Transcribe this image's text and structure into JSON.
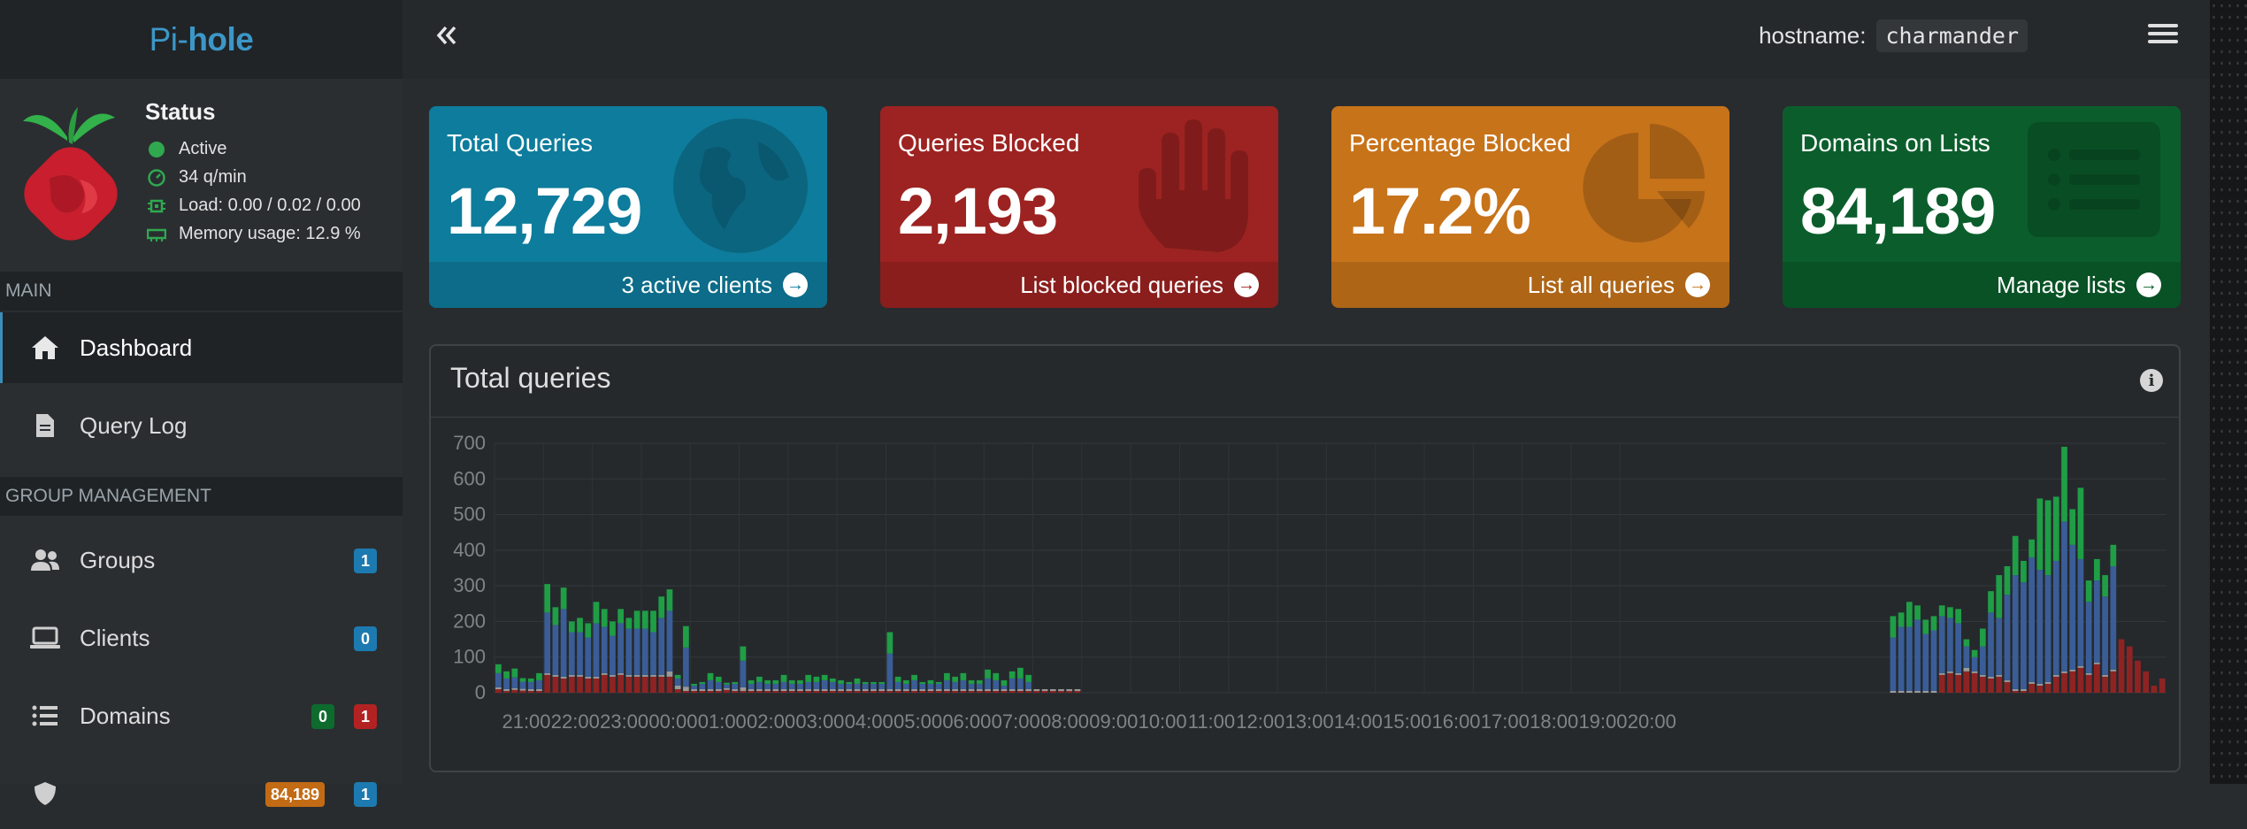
{
  "brand": {
    "pi": "Pi-",
    "hole": "hole"
  },
  "topbar": {
    "hostname_label": "hostname:",
    "hostname_value": "charmander"
  },
  "status": {
    "title": "Status",
    "active": "Active",
    "rate": "34 q/min",
    "load": "Load: 0.00 / 0.02 / 0.00",
    "memory": "Memory usage: 12.9 %"
  },
  "sidebar": {
    "main_header": "MAIN",
    "group_header": "GROUP MANAGEMENT",
    "items": [
      {
        "label": "Dashboard",
        "icon": "home-icon"
      },
      {
        "label": "Query Log",
        "icon": "file-icon"
      },
      {
        "label": "Groups",
        "icon": "users-icon",
        "badges": [
          "1"
        ]
      },
      {
        "label": "Clients",
        "icon": "laptop-icon",
        "badges": [
          "0"
        ]
      },
      {
        "label": "Domains",
        "icon": "list-icon",
        "badges": [
          "0",
          "1"
        ]
      },
      {
        "label": "",
        "icon": "shield-icon",
        "badges": [
          "84,189",
          "1"
        ]
      }
    ]
  },
  "boxes": [
    {
      "label": "Total Queries",
      "value": "12,729",
      "footer": "3 active clients",
      "color": "#0e7c9c",
      "icon": "globe-icon"
    },
    {
      "label": "Queries Blocked",
      "value": "2,193",
      "footer": "List blocked queries",
      "color": "#9c2321",
      "icon": "hand-icon"
    },
    {
      "label": "Percentage Blocked",
      "value": "17.2%",
      "footer": "List all queries",
      "color": "#c7731a",
      "icon": "pie-chart-icon"
    },
    {
      "label": "Domains on Lists",
      "value": "84,189",
      "footer": "Manage lists",
      "color": "#0b5e2c",
      "icon": "list-icon"
    }
  ],
  "chart_title": "Total queries",
  "chart_data": {
    "type": "bar",
    "stacked": true,
    "ylim": [
      0,
      700
    ],
    "yticks": [
      0,
      100,
      200,
      300,
      400,
      500,
      600,
      700
    ],
    "xtick_labels": [
      "21:00",
      "22:00",
      "23:00",
      "00:00",
      "01:00",
      "02:00",
      "03:00",
      "04:00",
      "05:00",
      "06:00",
      "07:00",
      "08:00",
      "09:00",
      "10:00",
      "11:00",
      "12:00",
      "13:00",
      "14:00",
      "15:00",
      "16:00",
      "17:00",
      "18:00",
      "19:00",
      "20:00"
    ],
    "colors": {
      "blocked": "#8e2323",
      "cached": "#9a9a9a",
      "forwarded": "#3a5d97",
      "other": "#1f9e46"
    },
    "slots_per_hour": 6,
    "series": [
      {
        "key": "blocked",
        "values": [
          10,
          5,
          8,
          6,
          5,
          5,
          50,
          45,
          40,
          45,
          45,
          40,
          40,
          50,
          45,
          50,
          45,
          45,
          45,
          45,
          45,
          45,
          10,
          5,
          5,
          5,
          5,
          5,
          8,
          5,
          5,
          5,
          5,
          5,
          5,
          5,
          5,
          5,
          5,
          5,
          5,
          5,
          5,
          5,
          5,
          5,
          5,
          5,
          5,
          5,
          5,
          5,
          5,
          5,
          5,
          5,
          5,
          5,
          5,
          5,
          5,
          5,
          5,
          5,
          5,
          5,
          5,
          5,
          5,
          5,
          5,
          5,
          0,
          0,
          0,
          0,
          0,
          0,
          0,
          0,
          0,
          0,
          0,
          0,
          0,
          0,
          0,
          0,
          0,
          0,
          0,
          0,
          0,
          0,
          0,
          0,
          0,
          0,
          0,
          0,
          0,
          0,
          0,
          0,
          0,
          0,
          0,
          0,
          0,
          0,
          0,
          0,
          0,
          0,
          0,
          0,
          0,
          0,
          0,
          0,
          0,
          0,
          0,
          0,
          0,
          0,
          0,
          0,
          0,
          0,
          0,
          0,
          0,
          0,
          0,
          0,
          0,
          0,
          0,
          0,
          0,
          0,
          0,
          0,
          0,
          0,
          0,
          0,
          0,
          0,
          0,
          0,
          0,
          0,
          0,
          0,
          0,
          0,
          0,
          0,
          0,
          0,
          0,
          0,
          0,
          0,
          0,
          0,
          0,
          0,
          0,
          0,
          0,
          0,
          0,
          0,
          0,
          50,
          55,
          50,
          60,
          55,
          45,
          40,
          45,
          30,
          5,
          5,
          25,
          20,
          25,
          45,
          55,
          60,
          70,
          50,
          80,
          45,
          60,
          150,
          130,
          90,
          60,
          20,
          40
        ]
      },
      {
        "key": "cached",
        "values": [
          5,
          5,
          5,
          5,
          5,
          5,
          5,
          5,
          5,
          5,
          5,
          5,
          5,
          5,
          5,
          5,
          5,
          5,
          5,
          5,
          5,
          15,
          10,
          12,
          5,
          5,
          5,
          5,
          5,
          5,
          10,
          5,
          5,
          5,
          5,
          5,
          5,
          5,
          5,
          5,
          5,
          5,
          5,
          5,
          5,
          5,
          5,
          5,
          5,
          5,
          5,
          5,
          5,
          5,
          5,
          5,
          5,
          5,
          5,
          5,
          5,
          5,
          5,
          5,
          5,
          5,
          5,
          5,
          5,
          5,
          5,
          5,
          0,
          0,
          0,
          0,
          0,
          0,
          0,
          0,
          0,
          0,
          0,
          0,
          0,
          0,
          0,
          0,
          0,
          0,
          0,
          0,
          0,
          0,
          0,
          0,
          0,
          0,
          0,
          0,
          0,
          0,
          0,
          0,
          0,
          0,
          0,
          0,
          0,
          0,
          0,
          0,
          0,
          0,
          0,
          0,
          0,
          0,
          0,
          0,
          0,
          0,
          0,
          0,
          0,
          0,
          0,
          0,
          0,
          0,
          0,
          0,
          0,
          0,
          0,
          0,
          0,
          0,
          0,
          0,
          0,
          0,
          0,
          0,
          0,
          0,
          0,
          0,
          0,
          0,
          0,
          0,
          0,
          0,
          0,
          0,
          0,
          0,
          0,
          0,
          0,
          0,
          0,
          0,
          0,
          0,
          0,
          0,
          0,
          0,
          0,
          5,
          5,
          5,
          5,
          5,
          5,
          5,
          5,
          5,
          10,
          5,
          5,
          5,
          5,
          5,
          5,
          5,
          5,
          5,
          5,
          5,
          5,
          5,
          5,
          5,
          5,
          5,
          5
        ]
      },
      {
        "key": "forwarded",
        "values": [
          40,
          30,
          30,
          20,
          20,
          25,
          170,
          140,
          190,
          120,
          120,
          110,
          150,
          130,
          110,
          140,
          130,
          130,
          130,
          120,
          160,
          170,
          20,
          110,
          10,
          15,
          25,
          20,
          10,
          15,
          75,
          15,
          20,
          15,
          15,
          20,
          15,
          15,
          20,
          20,
          25,
          20,
          15,
          15,
          15,
          15,
          15,
          15,
          100,
          20,
          15,
          25,
          15,
          15,
          15,
          25,
          20,
          25,
          15,
          15,
          30,
          25,
          10,
          30,
          30,
          20,
          0,
          0,
          0,
          0,
          0,
          0,
          0,
          0,
          0,
          0,
          0,
          0,
          0,
          0,
          0,
          0,
          0,
          0,
          0,
          0,
          0,
          0,
          0,
          0,
          0,
          0,
          0,
          0,
          0,
          0,
          0,
          0,
          0,
          0,
          0,
          0,
          0,
          0,
          0,
          0,
          0,
          0,
          0,
          0,
          0,
          0,
          0,
          0,
          0,
          0,
          0,
          0,
          0,
          0,
          0,
          0,
          0,
          0,
          0,
          0,
          0,
          0,
          0,
          0,
          0,
          0,
          0,
          0,
          0,
          0,
          0,
          0,
          0,
          0,
          0,
          0,
          0,
          0,
          0,
          0,
          0,
          0,
          0,
          0,
          0,
          0,
          0,
          0,
          0,
          0,
          0,
          0,
          0,
          0,
          0,
          0,
          0,
          0,
          0,
          0,
          0,
          0,
          0,
          0,
          0,
          150,
          180,
          180,
          200,
          160,
          170,
          160,
          150,
          140,
          60,
          40,
          80,
          180,
          160,
          240,
          320,
          300,
          350,
          320,
          300,
          320,
          420,
          350,
          300,
          200,
          230,
          220,
          290
        ]
      },
      {
        "key": "other",
        "values": [
          25,
          20,
          25,
          10,
          10,
          20,
          80,
          50,
          60,
          30,
          40,
          40,
          60,
          50,
          40,
          40,
          30,
          50,
          50,
          60,
          60,
          60,
          10,
          60,
          5,
          5,
          20,
          15,
          5,
          5,
          40,
          10,
          15,
          10,
          10,
          20,
          10,
          10,
          20,
          15,
          15,
          10,
          10,
          5,
          15,
          5,
          5,
          5,
          60,
          15,
          10,
          15,
          5,
          10,
          5,
          20,
          15,
          20,
          10,
          10,
          25,
          20,
          15,
          20,
          30,
          20,
          0,
          0,
          0,
          0,
          0,
          0,
          0,
          0,
          0,
          0,
          0,
          0,
          0,
          0,
          0,
          0,
          0,
          0,
          0,
          0,
          0,
          0,
          0,
          0,
          0,
          0,
          0,
          0,
          0,
          0,
          0,
          0,
          0,
          0,
          0,
          0,
          0,
          0,
          0,
          0,
          0,
          0,
          0,
          0,
          0,
          0,
          0,
          0,
          0,
          0,
          0,
          0,
          0,
          0,
          0,
          0,
          0,
          0,
          0,
          0,
          0,
          0,
          0,
          0,
          0,
          0,
          0,
          0,
          0,
          0,
          0,
          0,
          0,
          0,
          0,
          0,
          0,
          0,
          0,
          0,
          0,
          0,
          0,
          0,
          0,
          0,
          0,
          0,
          0,
          0,
          0,
          0,
          0,
          0,
          0,
          0,
          0,
          0,
          0,
          0,
          0,
          0,
          0,
          0,
          0,
          60,
          40,
          70,
          40,
          40,
          40,
          30,
          30,
          40,
          20,
          20,
          50,
          60,
          120,
          80,
          110,
          60,
          50,
          200,
          210,
          180,
          210,
          100,
          200,
          60,
          60,
          60,
          60
        ]
      }
    ]
  }
}
